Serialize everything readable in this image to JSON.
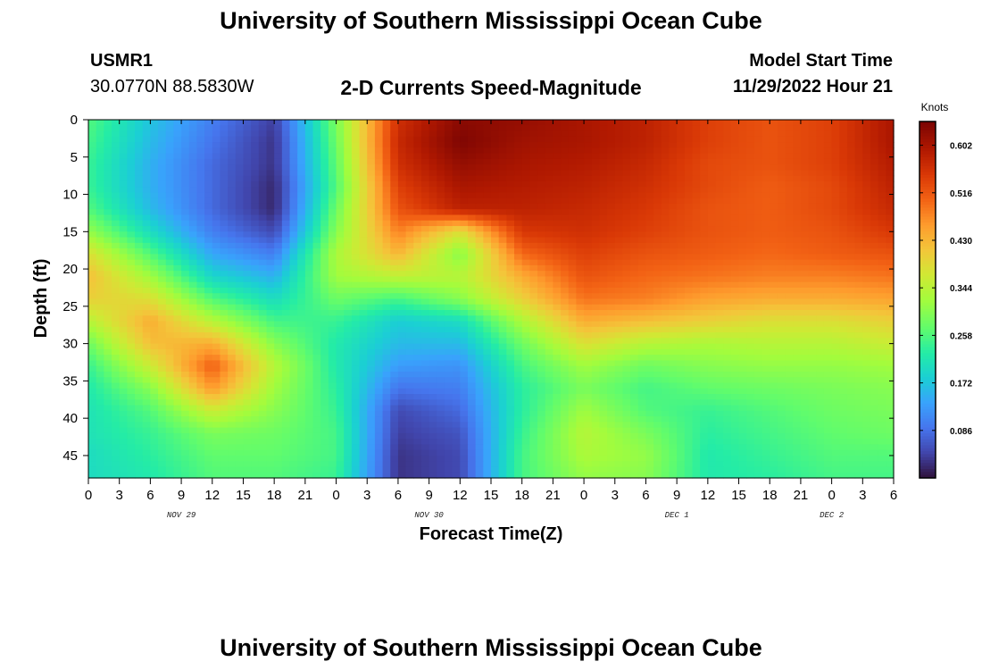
{
  "header": {
    "title": "University of Southern Mississippi Ocean Cube",
    "station_id": "USMR1",
    "station_coords": "30.0770N  88.5830W",
    "chart_title": "2-D Currents Speed-Magnitude",
    "model_start_label": "Model Start Time",
    "model_start_value": "11/29/2022 Hour 21"
  },
  "footer": {
    "title": "University of Southern Mississippi Ocean Cube"
  },
  "chart_data": {
    "type": "heatmap",
    "title": "2-D Currents Speed-Magnitude",
    "xlabel": "Forecast Time(Z)",
    "ylabel": "Depth (ft)",
    "x_tick_labels": [
      "0",
      "3",
      "6",
      "9",
      "12",
      "15",
      "18",
      "21",
      "0",
      "3",
      "6",
      "9",
      "12",
      "15",
      "18",
      "21",
      "0",
      "3",
      "6",
      "9",
      "12",
      "15",
      "18",
      "21",
      "0",
      "3",
      "6"
    ],
    "x_date_labels": [
      {
        "label": "NOV 29",
        "hour_index": 3
      },
      {
        "label": "NOV 30",
        "hour_index": 11
      },
      {
        "label": "DEC 1",
        "hour_index": 19
      },
      {
        "label": "DEC 2",
        "hour_index": 24
      }
    ],
    "x_range_hours": [
      0,
      78
    ],
    "y_ticks": [
      0,
      5,
      10,
      15,
      20,
      25,
      30,
      35,
      40,
      45
    ],
    "ylim": [
      0,
      48
    ],
    "y_reversed": true,
    "colorbar": {
      "unit": "Knots",
      "ticks": [
        0.086,
        0.172,
        0.258,
        0.344,
        0.43,
        0.516,
        0.602
      ],
      "range": [
        0.0,
        0.645
      ]
    },
    "depths_ft": [
      0,
      3,
      6,
      9,
      12,
      15,
      18,
      21,
      24,
      27,
      30,
      33,
      36,
      39,
      42,
      45,
      48
    ],
    "hours": [
      0,
      6,
      12,
      18,
      24,
      30,
      36,
      42,
      48,
      54,
      60,
      66,
      72,
      78
    ],
    "values_knots": [
      [
        0.26,
        0.17,
        0.1,
        0.04,
        0.29,
        0.56,
        0.63,
        0.62,
        0.6,
        0.58,
        0.54,
        0.52,
        0.54,
        0.6
      ],
      [
        0.25,
        0.16,
        0.09,
        0.03,
        0.28,
        0.57,
        0.64,
        0.61,
        0.6,
        0.58,
        0.54,
        0.52,
        0.54,
        0.6
      ],
      [
        0.24,
        0.15,
        0.08,
        0.03,
        0.27,
        0.56,
        0.62,
        0.6,
        0.59,
        0.57,
        0.53,
        0.52,
        0.54,
        0.59
      ],
      [
        0.24,
        0.15,
        0.08,
        0.02,
        0.26,
        0.54,
        0.6,
        0.59,
        0.58,
        0.56,
        0.53,
        0.51,
        0.53,
        0.58
      ],
      [
        0.26,
        0.16,
        0.08,
        0.02,
        0.28,
        0.52,
        0.58,
        0.58,
        0.57,
        0.55,
        0.52,
        0.51,
        0.53,
        0.57
      ],
      [
        0.31,
        0.2,
        0.1,
        0.05,
        0.3,
        0.48,
        0.38,
        0.55,
        0.56,
        0.54,
        0.52,
        0.51,
        0.52,
        0.55
      ],
      [
        0.38,
        0.26,
        0.14,
        0.1,
        0.33,
        0.43,
        0.3,
        0.5,
        0.54,
        0.52,
        0.51,
        0.5,
        0.51,
        0.52
      ],
      [
        0.42,
        0.32,
        0.19,
        0.15,
        0.32,
        0.35,
        0.34,
        0.44,
        0.52,
        0.5,
        0.49,
        0.48,
        0.48,
        0.49
      ],
      [
        0.4,
        0.38,
        0.26,
        0.2,
        0.28,
        0.25,
        0.3,
        0.4,
        0.49,
        0.48,
        0.45,
        0.44,
        0.44,
        0.45
      ],
      [
        0.34,
        0.44,
        0.34,
        0.25,
        0.24,
        0.18,
        0.2,
        0.33,
        0.44,
        0.42,
        0.4,
        0.38,
        0.38,
        0.4
      ],
      [
        0.28,
        0.42,
        0.44,
        0.3,
        0.22,
        0.16,
        0.16,
        0.28,
        0.38,
        0.34,
        0.33,
        0.34,
        0.34,
        0.36
      ],
      [
        0.24,
        0.36,
        0.51,
        0.34,
        0.22,
        0.13,
        0.12,
        0.25,
        0.32,
        0.28,
        0.3,
        0.31,
        0.31,
        0.32
      ],
      [
        0.22,
        0.3,
        0.46,
        0.32,
        0.23,
        0.09,
        0.1,
        0.23,
        0.29,
        0.25,
        0.27,
        0.28,
        0.29,
        0.3
      ],
      [
        0.21,
        0.26,
        0.36,
        0.3,
        0.24,
        0.05,
        0.08,
        0.23,
        0.32,
        0.26,
        0.24,
        0.26,
        0.28,
        0.29
      ],
      [
        0.21,
        0.24,
        0.29,
        0.28,
        0.25,
        0.04,
        0.06,
        0.24,
        0.34,
        0.29,
        0.23,
        0.25,
        0.27,
        0.28
      ],
      [
        0.2,
        0.23,
        0.27,
        0.27,
        0.25,
        0.03,
        0.05,
        0.25,
        0.33,
        0.31,
        0.22,
        0.24,
        0.26,
        0.26
      ],
      [
        0.2,
        0.22,
        0.26,
        0.26,
        0.24,
        0.03,
        0.05,
        0.25,
        0.31,
        0.3,
        0.22,
        0.23,
        0.25,
        0.25
      ]
    ]
  }
}
